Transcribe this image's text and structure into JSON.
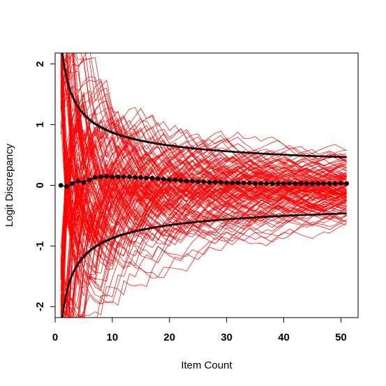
{
  "chart_data": {
    "type": "line",
    "title": "",
    "xlabel": "Item Count",
    "ylabel": "Logit Discrepancy",
    "xlim": [
      0,
      53
    ],
    "ylim": [
      -2.18,
      2.18
    ],
    "xticks": [
      0,
      10,
      20,
      30,
      40,
      50
    ],
    "yticks": [
      -2,
      -1,
      0,
      1,
      2
    ],
    "grid": false,
    "legend": "none",
    "colors": {
      "simulated": "#ff0000",
      "envelope": "#000000",
      "mean": "#000000"
    },
    "simulated_paths": {
      "count": 140,
      "n_items": 51,
      "description_values": "random walk paths of cumulative logit discrepancy"
    },
    "mean_series": {
      "x": [
        1,
        2,
        3,
        4,
        5,
        6,
        7,
        8,
        9,
        10,
        11,
        12,
        13,
        14,
        15,
        16,
        17,
        18,
        19,
        20,
        21,
        22,
        23,
        24,
        25,
        26,
        27,
        28,
        29,
        30,
        31,
        32,
        33,
        34,
        35,
        36,
        37,
        38,
        39,
        40,
        41,
        42,
        43,
        44,
        45,
        46,
        47,
        48,
        49,
        50,
        51
      ],
      "y": [
        0.0,
        -0.02,
        0.03,
        0.07,
        0.05,
        0.09,
        0.13,
        0.14,
        0.15,
        0.14,
        0.14,
        0.14,
        0.14,
        0.13,
        0.13,
        0.12,
        0.12,
        0.11,
        0.1,
        0.09,
        0.09,
        0.08,
        0.07,
        0.07,
        0.06,
        0.06,
        0.05,
        0.05,
        0.05,
        0.04,
        0.04,
        0.04,
        0.04,
        0.04,
        0.03,
        0.03,
        0.03,
        0.03,
        0.03,
        0.03,
        0.03,
        0.03,
        0.03,
        0.03,
        0.03,
        0.03,
        0.03,
        0.03,
        0.03,
        0.03,
        0.03
      ]
    },
    "envelope": {
      "upper_asymptote": 0.22,
      "upper_scale": 2.3,
      "lower_asymptote": -0.22,
      "lower_scale": -2.3
    }
  }
}
